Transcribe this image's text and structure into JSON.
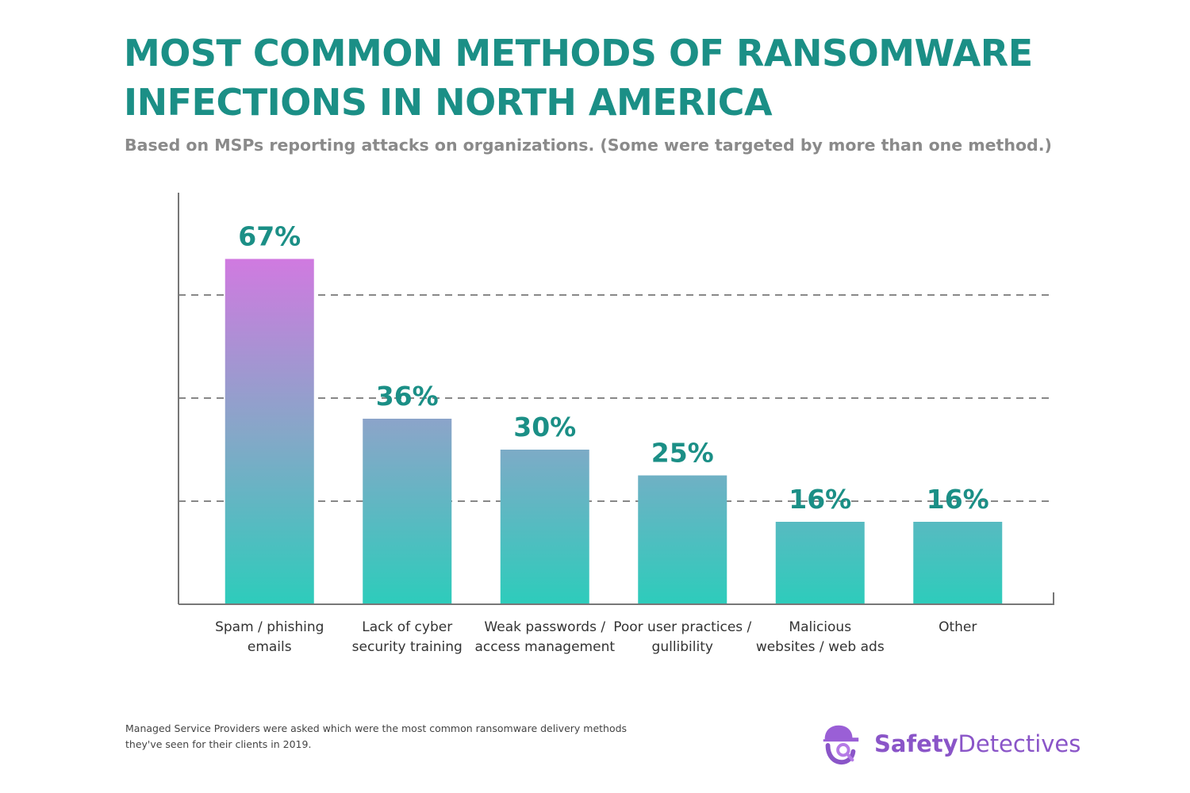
{
  "header": {
    "title_line1": "MOST COMMON METHODS OF RANSOMWARE",
    "title_line2": "INFECTIONS IN NORTH AMERICA",
    "subtitle": "Based on MSPs reporting attacks on organizations. (Some were targeted by more than one method.)"
  },
  "chart_data": {
    "type": "bar",
    "title": "MOST COMMON METHODS OF RANSOMWARE INFECTIONS IN NORTH AMERICA",
    "subtitle": "Based on MSPs reporting attacks on organizations. (Some were targeted by more than one method.)",
    "categories": [
      [
        "Spam / phishing",
        "emails"
      ],
      [
        "Lack of cyber",
        "security training"
      ],
      [
        "Weak passwords /",
        "access management"
      ],
      [
        "Poor user practices /",
        "gullibility"
      ],
      [
        "Malicious",
        "websites / web ads"
      ],
      [
        "Other"
      ]
    ],
    "values": [
      67,
      36,
      30,
      25,
      16,
      16
    ],
    "value_labels": [
      "67%",
      "36%",
      "30%",
      "25%",
      "16%",
      "16%"
    ],
    "unit": "%",
    "ylim": [
      0,
      80
    ],
    "gridlines": [
      20,
      40,
      60
    ],
    "grid": true,
    "legend": "none",
    "colors": {
      "bar_top": "#d07ae0",
      "bar_mid": "#86a7c8",
      "bar_bottom": "#2dccbb",
      "label": "#1b8f86",
      "axis": "#777777",
      "grid": "#888888"
    }
  },
  "footnote": {
    "line1": "Managed Service Providers were asked which were the most common ransomware delivery methods",
    "line2": "they've seen for their clients in 2019."
  },
  "brand": {
    "name_part1": "Safety",
    "name_part2": "Detectives",
    "icon": "detective-icon",
    "color": "#8a55c8"
  }
}
